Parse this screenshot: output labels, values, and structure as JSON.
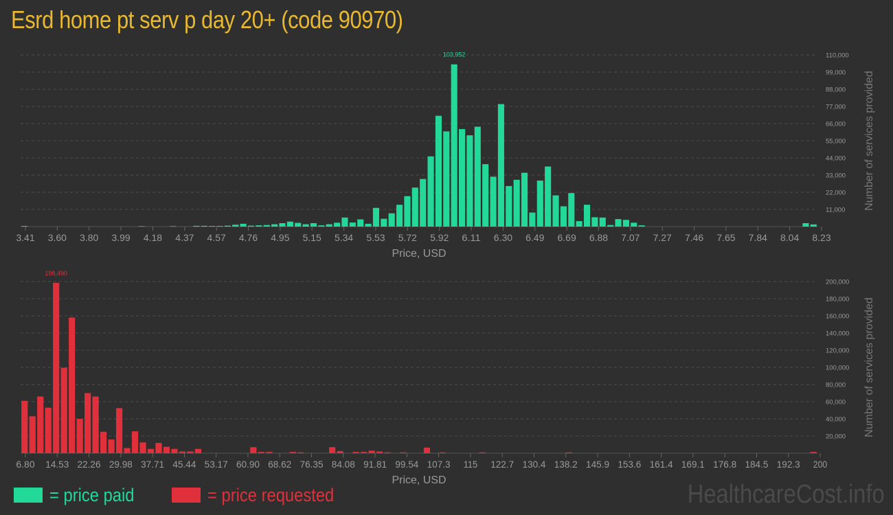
{
  "title": "Esrd home pt serv p day 20+ (code 90970)",
  "colors": {
    "paid": "#23d99a",
    "requested": "#e0303c",
    "title": "#e8b830",
    "background": "#2f2f2f",
    "axis_text": "#9a9a9a",
    "grid": "#4d4d4d"
  },
  "legend": {
    "paid": "= price paid",
    "requested": "= price requested"
  },
  "watermark": "HealthcareCost.info",
  "chart_data": [
    {
      "type": "bar",
      "name": "price paid",
      "xlabel": "Price, USD",
      "ylabel": "Number of services provided",
      "ylim": [
        0,
        110000
      ],
      "yticks": [
        11000,
        22000,
        33000,
        44000,
        55000,
        66000,
        77000,
        88000,
        99000,
        110000
      ],
      "ytick_labels": [
        "11,000",
        "22,000",
        "33,000",
        "44,000",
        "55,000",
        "66,000",
        "77,000",
        "88,000",
        "99,000",
        "110,000"
      ],
      "xtick_labels": [
        "3.41",
        "3.60",
        "3.80",
        "3.99",
        "4.18",
        "4.37",
        "4.57",
        "4.76",
        "4.95",
        "5.15",
        "5.34",
        "5.53",
        "5.72",
        "5.92",
        "6.11",
        "6.30",
        "6.49",
        "6.69",
        "6.88",
        "7.07",
        "7.27",
        "7.46",
        "7.65",
        "7.84",
        "8.04",
        "8.23"
      ],
      "peak_label": "103,952",
      "peak_index": 55,
      "values": [
        400,
        0,
        0,
        0,
        0,
        0,
        0,
        0,
        0,
        0,
        0,
        0,
        0,
        0,
        0,
        300,
        0,
        0,
        0,
        300,
        0,
        0,
        500,
        500,
        400,
        400,
        600,
        1200,
        1800,
        600,
        800,
        1000,
        1500,
        2200,
        3200,
        2400,
        1500,
        2200,
        800,
        1500,
        2500,
        5800,
        2600,
        4600,
        1800,
        12000,
        5000,
        8500,
        14000,
        19500,
        25000,
        30500,
        45000,
        71000,
        61000,
        103952,
        62500,
        58500,
        64000,
        40000,
        32000,
        78500,
        26000,
        30000,
        34500,
        9000,
        29500,
        38500,
        20000,
        13000,
        21500,
        3500,
        14000,
        6000,
        5800,
        1000,
        4800,
        4300,
        2500,
        800,
        0,
        0,
        0,
        0,
        0,
        0,
        0,
        0,
        0,
        0,
        0,
        0,
        0,
        0,
        0,
        0,
        0,
        0,
        0,
        0,
        2200,
        1400
      ]
    },
    {
      "type": "bar",
      "name": "price requested",
      "xlabel": "Price, USD",
      "ylabel": "Number of services provided",
      "ylim": [
        0,
        200000
      ],
      "yticks": [
        20000,
        40000,
        60000,
        80000,
        100000,
        120000,
        140000,
        160000,
        180000,
        200000
      ],
      "ytick_labels": [
        "20,000",
        "40,000",
        "60,000",
        "80,000",
        "100,000",
        "120,000",
        "140,000",
        "160,000",
        "180,000",
        "200,000"
      ],
      "xtick_labels": [
        "6.80",
        "14.53",
        "22.26",
        "29.98",
        "37.71",
        "45.44",
        "53.17",
        "60.90",
        "68.62",
        "76.35",
        "84.08",
        "91.81",
        "99.54",
        "107.3",
        "115",
        "122.7",
        "130.4",
        "138.2",
        "145.9",
        "153.6",
        "161.4",
        "169.1",
        "176.8",
        "184.5",
        "192.3",
        "200"
      ],
      "peak_label": "198,490",
      "peak_index": 4,
      "values": [
        61000,
        43000,
        66000,
        53000,
        198490,
        99500,
        158000,
        40000,
        70000,
        66000,
        25000,
        16000,
        52500,
        6000,
        25500,
        12500,
        5000,
        12000,
        7500,
        5000,
        2000,
        2000,
        5000,
        0,
        0,
        0,
        0,
        0,
        0,
        7000,
        1500,
        1500,
        0,
        0,
        1500,
        1000,
        0,
        0,
        0,
        7000,
        2500,
        0,
        1500,
        1500,
        3000,
        2000,
        1000,
        0,
        1000,
        0,
        0,
        6500,
        0,
        1000,
        0,
        0,
        0,
        0,
        1000,
        0,
        0,
        0,
        0,
        0,
        0,
        0,
        0,
        0,
        0,
        1000,
        0,
        0,
        0,
        0,
        0,
        0,
        0,
        0,
        0,
        0,
        0,
        0,
        0,
        0,
        0,
        0,
        0,
        0,
        0,
        0,
        0,
        0,
        0,
        0,
        0,
        0,
        0,
        0,
        0,
        0,
        1500
      ]
    }
  ]
}
